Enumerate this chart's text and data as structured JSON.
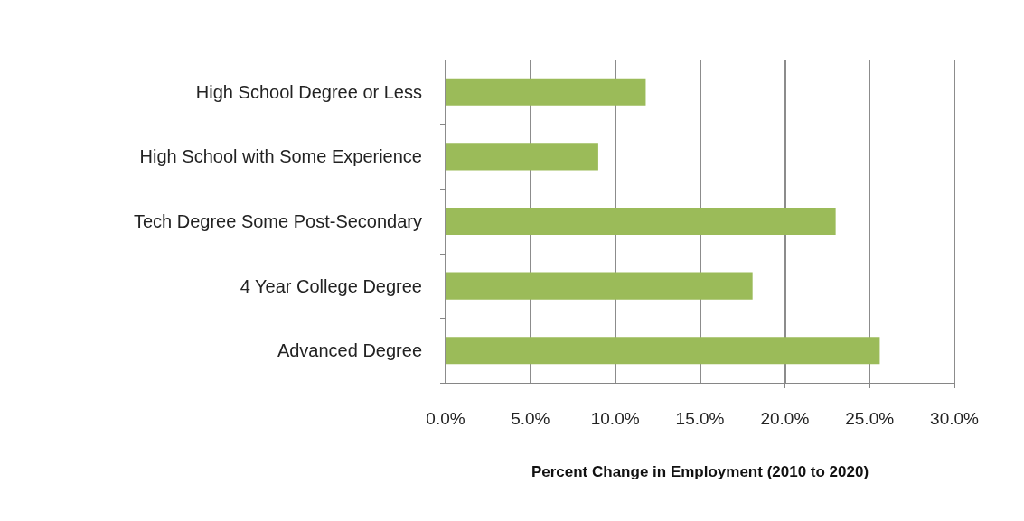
{
  "chart_data": {
    "type": "bar",
    "orientation": "horizontal",
    "xlabel": "Percent Change in Employment (2010 to 2020)",
    "categories": [
      "High School Degree or Less",
      "High School with Some Experience",
      "Tech Degree Some Post-Secondary",
      "4 Year College Degree",
      "Advanced Degree"
    ],
    "values": [
      11.8,
      9.0,
      23.0,
      18.1,
      25.6
    ],
    "color": "#9bbb59",
    "xlim": [
      0,
      30
    ],
    "xticks": [
      {
        "value": 0,
        "label": "0.0%"
      },
      {
        "value": 5,
        "label": "5.0%"
      },
      {
        "value": 10,
        "label": "10.0%"
      },
      {
        "value": 15,
        "label": "15.0%"
      },
      {
        "value": 20,
        "label": "20.0%"
      },
      {
        "value": 25,
        "label": "25.0%"
      },
      {
        "value": 30,
        "label": "30.0%"
      }
    ],
    "grid": "x"
  }
}
